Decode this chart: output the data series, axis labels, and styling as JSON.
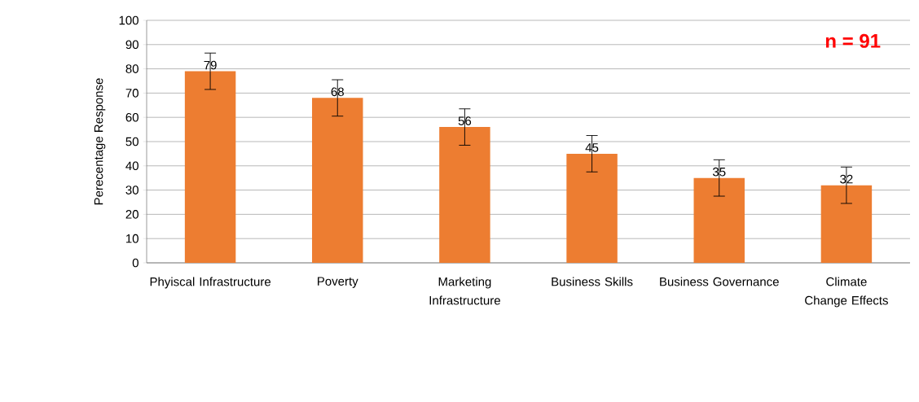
{
  "chart_data": {
    "type": "bar",
    "ylabel": "Perecentage Response",
    "categories": [
      "Phyiscal Infrastructure",
      "Poverty",
      "Marketing Infrastructure",
      "Business Skills",
      "Business Governance",
      "Climate Change Effects"
    ],
    "values": [
      79,
      68,
      56,
      45,
      35,
      32
    ],
    "errors": [
      7.5,
      7.5,
      7.5,
      7.5,
      7.5,
      7.5
    ],
    "color": "#ed7d31",
    "ylim": [
      0,
      100
    ],
    "yticks": [
      0,
      10,
      20,
      30,
      40,
      50,
      60,
      70,
      80,
      90,
      100
    ],
    "grid": "y",
    "data_labels": true,
    "annotations": [
      "n = 91"
    ]
  }
}
